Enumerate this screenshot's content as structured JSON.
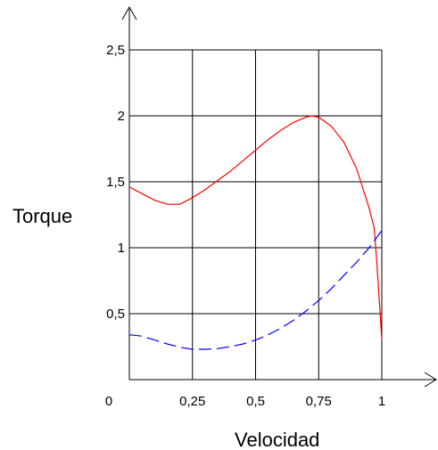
{
  "chart_data": {
    "type": "line",
    "title": "",
    "xlabel": "Velocidad",
    "ylabel": "Torque",
    "xlim": [
      0,
      1
    ],
    "ylim": [
      0,
      2.5
    ],
    "grid": true,
    "x_ticks": [
      {
        "value": 0,
        "label": "0"
      },
      {
        "value": 0.25,
        "label": "0,25"
      },
      {
        "value": 0.5,
        "label": "0,5"
      },
      {
        "value": 0.75,
        "label": "0,75"
      },
      {
        "value": 1,
        "label": "1"
      }
    ],
    "y_ticks": [
      {
        "value": 0.5,
        "label": "0,5"
      },
      {
        "value": 1,
        "label": "1"
      },
      {
        "value": 1.5,
        "label": "1,5"
      },
      {
        "value": 2,
        "label": "2"
      },
      {
        "value": 2.5,
        "label": "2,5"
      }
    ],
    "series": [
      {
        "color": "#ff0000",
        "style": "solid",
        "x": [
          0,
          0.05,
          0.1,
          0.15,
          0.2,
          0.25,
          0.3,
          0.35,
          0.4,
          0.45,
          0.5,
          0.55,
          0.6,
          0.65,
          0.7,
          0.72,
          0.75,
          0.8,
          0.85,
          0.9,
          0.93,
          0.95,
          0.97,
          0.98,
          0.99,
          1.0
        ],
        "y": [
          1.46,
          1.41,
          1.36,
          1.33,
          1.33,
          1.38,
          1.44,
          1.51,
          1.58,
          1.66,
          1.74,
          1.82,
          1.89,
          1.95,
          1.99,
          2.0,
          1.99,
          1.92,
          1.8,
          1.6,
          1.42,
          1.3,
          1.15,
          0.9,
          0.6,
          0.3
        ]
      },
      {
        "color": "#0000ff",
        "style": "dashed",
        "x": [
          0,
          0.05,
          0.1,
          0.15,
          0.2,
          0.25,
          0.3,
          0.35,
          0.4,
          0.45,
          0.5,
          0.55,
          0.6,
          0.65,
          0.7,
          0.75,
          0.8,
          0.85,
          0.9,
          0.95,
          1.0
        ],
        "y": [
          0.34,
          0.33,
          0.3,
          0.27,
          0.245,
          0.23,
          0.23,
          0.235,
          0.25,
          0.27,
          0.3,
          0.34,
          0.39,
          0.45,
          0.52,
          0.6,
          0.69,
          0.79,
          0.89,
          1.0,
          1.13
        ]
      }
    ]
  }
}
